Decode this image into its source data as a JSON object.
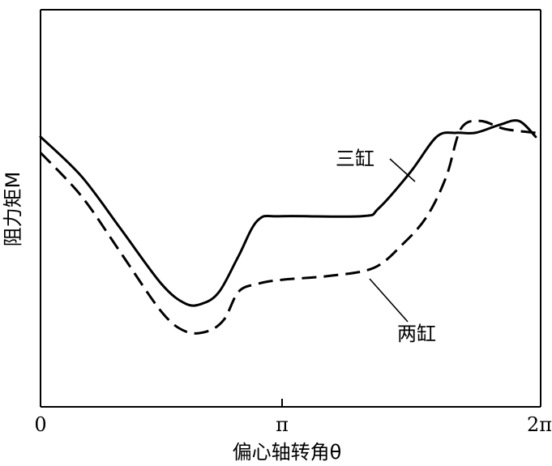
{
  "chart_data": {
    "type": "line",
    "xlabel": "偏心轴转角θ",
    "ylabel": "阻力矩M",
    "xlim": [
      0,
      2
    ],
    "x_unit": "π",
    "ylim": [
      0,
      1
    ],
    "grid": false,
    "x_ticks": [
      {
        "value": 0,
        "label": "0"
      },
      {
        "value": 1,
        "label": "π"
      },
      {
        "value": 2,
        "label": "2π"
      }
    ],
    "series": [
      {
        "name": "三缸",
        "style": "solid",
        "x": [
          0,
          0.17,
          0.33,
          0.5,
          0.6,
          0.67,
          0.74,
          0.82,
          0.9,
          1.0,
          1.33,
          1.4,
          1.53,
          1.64,
          1.72,
          1.8,
          1.9,
          1.98,
          2.05
        ],
        "y": [
          0.68,
          0.58,
          0.45,
          0.31,
          0.26,
          0.26,
          0.29,
          0.38,
          0.47,
          0.48,
          0.48,
          0.5,
          0.59,
          0.68,
          0.69,
          0.69,
          0.71,
          0.72,
          0.68
        ]
      },
      {
        "name": "两缸",
        "style": "dashed",
        "x": [
          0,
          0.17,
          0.33,
          0.5,
          0.6,
          0.69,
          0.76,
          0.82,
          0.9,
          1.0,
          1.2,
          1.38,
          1.5,
          1.6,
          1.68,
          1.74,
          1.82,
          1.92,
          2.05
        ],
        "y": [
          0.64,
          0.53,
          0.39,
          0.24,
          0.19,
          0.19,
          0.22,
          0.29,
          0.31,
          0.32,
          0.33,
          0.35,
          0.41,
          0.48,
          0.58,
          0.7,
          0.72,
          0.7,
          0.69
        ]
      }
    ],
    "annotations": [
      {
        "text": "三缸",
        "series": "三缸"
      },
      {
        "text": "两缸",
        "series": "两缸"
      }
    ]
  }
}
